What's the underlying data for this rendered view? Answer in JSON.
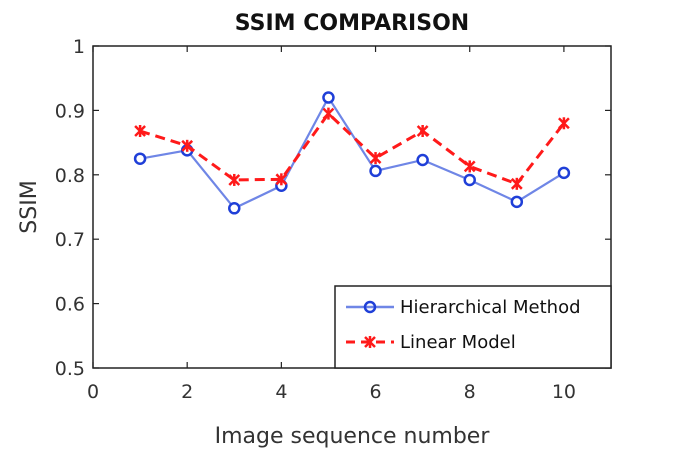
{
  "chart_data": {
    "type": "line",
    "title": "SSIM COMPARISON",
    "xlabel": "Image sequence number",
    "ylabel": "SSIM",
    "xlim": [
      0,
      11
    ],
    "ylim": [
      0.5,
      1
    ],
    "xticks": [
      0,
      2,
      4,
      6,
      8,
      10
    ],
    "yticks": [
      0.5,
      0.6,
      0.7,
      0.8,
      0.9,
      1
    ],
    "ytick_labels": [
      "0.5",
      "0.6",
      "0.7",
      "0.8",
      "0.9",
      "1"
    ],
    "x": [
      1,
      2,
      3,
      4,
      5,
      6,
      7,
      8,
      9,
      10
    ],
    "series": [
      {
        "name": "Hierarchical Method",
        "values": [
          0.825,
          0.838,
          0.748,
          0.783,
          0.92,
          0.806,
          0.823,
          0.792,
          0.758,
          0.803
        ],
        "color": "#1f3fd8",
        "line_color": "#6f86e6",
        "style": "solid-circle"
      },
      {
        "name": "Linear Model",
        "values": [
          0.868,
          0.845,
          0.792,
          0.793,
          0.895,
          0.826,
          0.868,
          0.813,
          0.786,
          0.88
        ],
        "color": "#ff1a1a",
        "line_color": "#ff1a1a",
        "style": "dashed-star"
      }
    ],
    "grid": false,
    "legend_position": "bottom-right"
  }
}
